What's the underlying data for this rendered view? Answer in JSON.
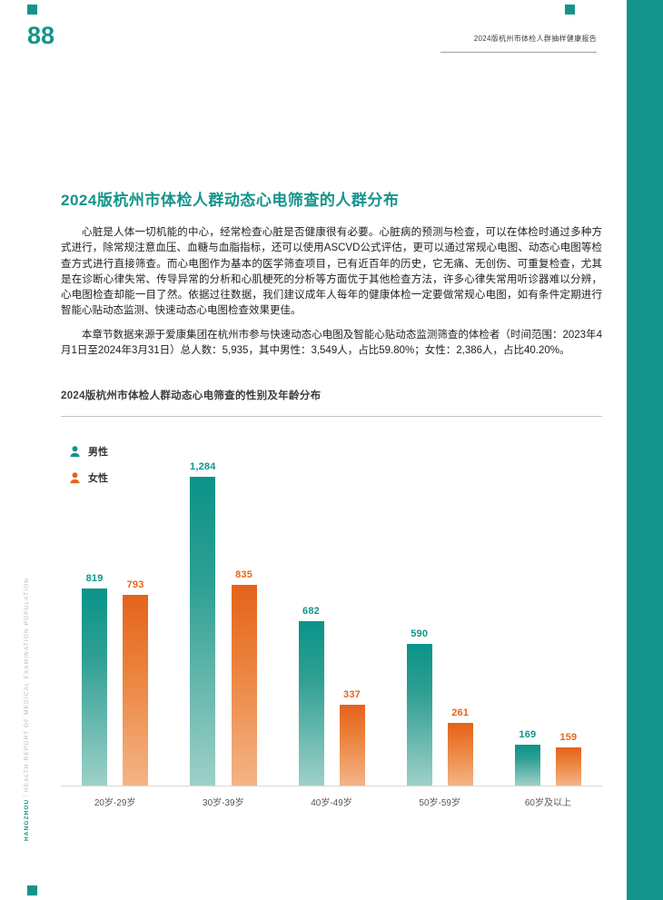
{
  "page": {
    "number": "88",
    "header_title": "2024版杭州市体检人群抽样健康报告",
    "spine": {
      "brand": "HANGZHOU",
      "separator": "｜",
      "title": "HEALTH REPORT OF MEDICAL EXAMINATION POPULATION"
    }
  },
  "colors": {
    "teal": "#14948a",
    "orange": "#e4671e"
  },
  "article": {
    "title": "2024版杭州市体检人群动态心电筛查的人群分布",
    "paragraphs": [
      "心脏是人体一切机能的中心，经常检查心脏是否健康很有必要。心脏病的预测与检查，可以在体检时通过多种方式进行，除常规注意血压、血糖与血脂指标，还可以使用ASCVD公式评估，更可以通过常规心电图、动态心电图等检查方式进行直接筛查。而心电图作为基本的医学筛查项目，已有近百年的历史，它无痛、无创伤、可重复检查，尤其是在诊断心律失常、传导异常的分析和心肌梗死的分析等方面优于其他检查方法，许多心律失常用听诊器难以分辨，心电图检查却能一目了然。依据过往数据，我们建议成年人每年的健康体检一定要做常规心电图，如有条件定期进行智能心贴动态监测、快速动态心电图检查效果更佳。",
      "本章节数据来源于爱康集团在杭州市参与快速动态心电图及智能心贴动态监测筛查的体检者（时间范围：2023年4月1日至2024年3月31日）总人数：5,935，其中男性：3,549人，占比59.80%；女性：2,386人，占比40.20%。"
    ]
  },
  "section": {
    "title": "2024版杭州市体检人群动态心电筛查的性别及年龄分布"
  },
  "chart_data": {
    "type": "bar",
    "title": "2024版杭州市体检人群动态心电筛查的性别及年龄分布",
    "categories": [
      "20岁-29岁",
      "30岁-39岁",
      "40岁-49岁",
      "50岁-59岁",
      "60岁及以上"
    ],
    "series": [
      {
        "name": "男性",
        "color": "#0f948a",
        "values": [
          819,
          1284,
          682,
          590,
          169
        ]
      },
      {
        "name": "女性",
        "color": "#e4671e",
        "values": [
          793,
          835,
          337,
          261,
          159
        ]
      }
    ],
    "ylim": [
      0,
      1284
    ],
    "xlabel": "",
    "ylabel": "",
    "grid": false,
    "legend_position": "top-left",
    "value_labels": true
  }
}
